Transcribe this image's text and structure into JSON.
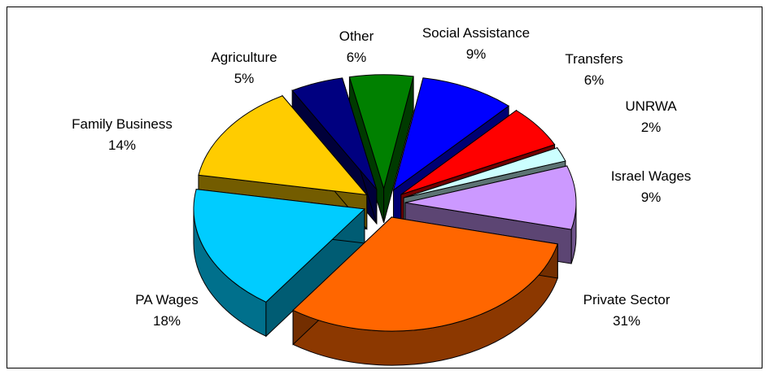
{
  "chart_data": {
    "type": "pie",
    "style": "3d-exploded",
    "title": "",
    "slices": [
      {
        "label": "Social Assistance",
        "value": 9,
        "display": "9%",
        "color": "#0000ff"
      },
      {
        "label": "Transfers",
        "value": 6,
        "display": "6%",
        "color": "#ff0000"
      },
      {
        "label": "UNRWA",
        "value": 2,
        "display": "2%",
        "color": "#ccffff"
      },
      {
        "label": "Israel Wages",
        "value": 9,
        "display": "9%",
        "color": "#cc99ff"
      },
      {
        "label": "Private Sector",
        "value": 31,
        "display": "31%",
        "color": "#ff6600"
      },
      {
        "label": "PA Wages",
        "value": 18,
        "display": "18%",
        "color": "#00ccff"
      },
      {
        "label": "Family Business",
        "value": 14,
        "display": "14%",
        "color": "#ffcc00"
      },
      {
        "label": "Agriculture",
        "value": 5,
        "display": "5%",
        "color": "#000080"
      },
      {
        "label": "Other",
        "value": 6,
        "display": "6%",
        "color": "#008000"
      }
    ],
    "legend": "none"
  }
}
